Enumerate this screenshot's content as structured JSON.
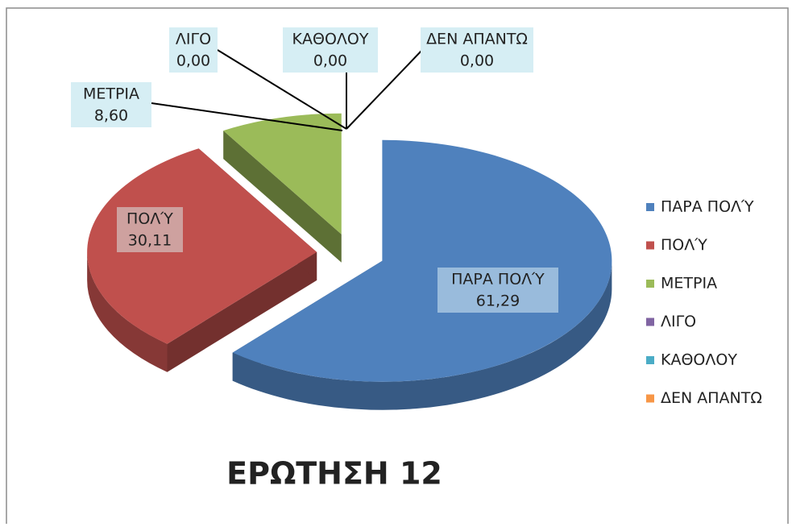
{
  "chart_data": {
    "type": "pie3d",
    "title": "ΕΡΩΤΗΣΗ 12",
    "categories": [
      "ΠΑΡΑ ΠΟΛΎ",
      "ΠΟΛΎ",
      "ΜΕΤΡΙΑ",
      "ΛΙΓΟ",
      "ΚΑΘΟΛΟΥ",
      "ΔΕΝ ΑΠΑΝΤΩ"
    ],
    "values": [
      61.29,
      30.11,
      8.6,
      0,
      0,
      0
    ],
    "value_labels": [
      "61,29",
      "30,11",
      "8,60",
      "0,00",
      "0,00",
      "0,00"
    ],
    "colors": [
      "#4f81bd",
      "#c0504d",
      "#9bbb59",
      "#8064a2",
      "#4bacc6",
      "#f79646"
    ],
    "legend": "right"
  }
}
